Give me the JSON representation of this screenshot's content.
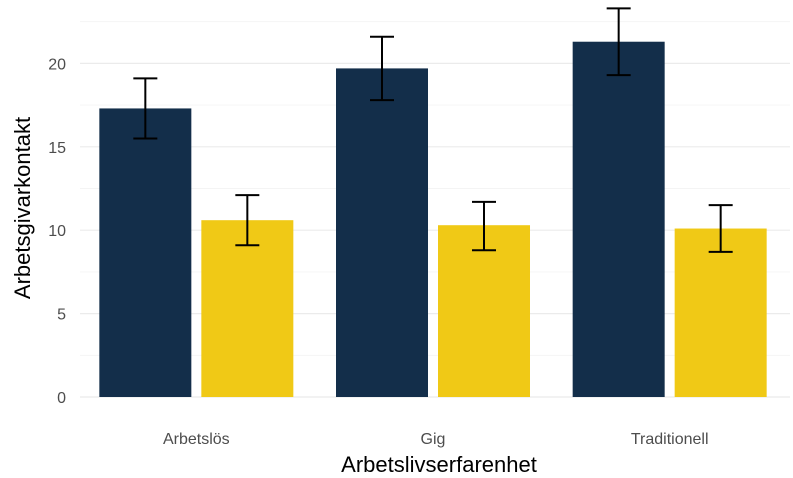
{
  "chart_data": {
    "type": "bar",
    "title": "",
    "xlabel": "Arbetslivserfarenhet",
    "ylabel": "Arbetsgivarkontakt",
    "categories": [
      "Arbetslös",
      "Gig",
      "Traditionell"
    ],
    "series": [
      {
        "color": "#132e4a",
        "values": [
          17.3,
          19.7,
          21.3
        ],
        "err_low": [
          15.5,
          17.8,
          19.3
        ],
        "err_high": [
          19.1,
          21.6,
          23.3
        ]
      },
      {
        "color": "#f0c916",
        "values": [
          10.6,
          10.3,
          10.1
        ],
        "err_low": [
          9.1,
          8.8,
          8.7
        ],
        "err_high": [
          12.1,
          11.7,
          11.5
        ]
      }
    ],
    "yticks": [
      0,
      5,
      10,
      15,
      20
    ],
    "ylim": [
      0,
      23.3
    ],
    "grid": true,
    "legend": "none"
  }
}
